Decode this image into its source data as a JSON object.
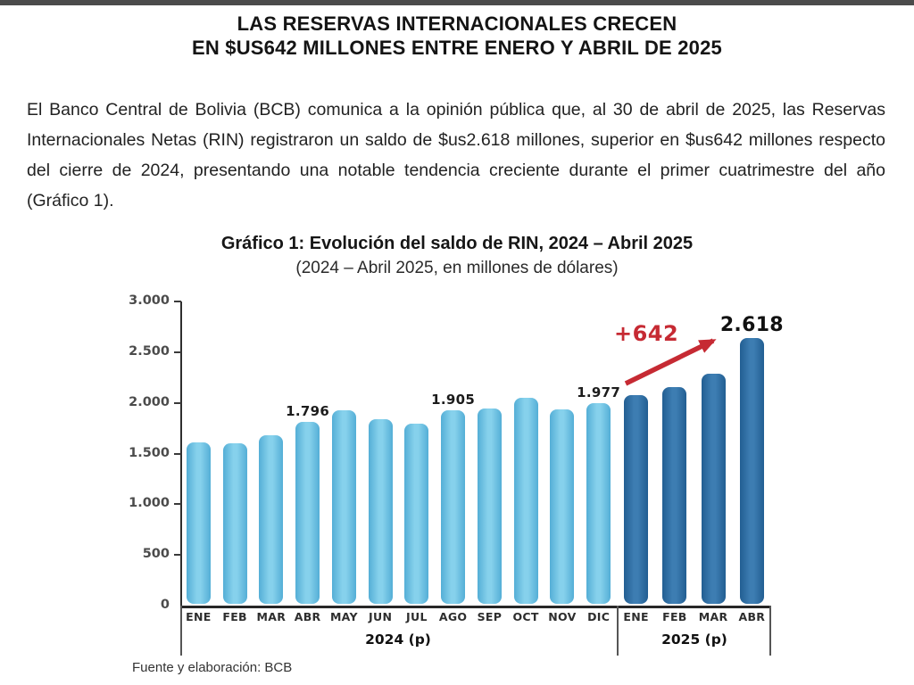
{
  "page": {
    "title_lines": [
      "LAS RESERVAS INTERNACIONALES CRECEN",
      "EN $US642 MILLONES ENTRE ENERO Y ABRIL DE 2025"
    ],
    "paragraph": "El Banco Central de Bolivia (BCB) comunica a la opinión pública que, al 30 de abril de 2025, las Reservas Internacionales Netas (RIN) registraron un saldo de $us2.618 millones, superior en $us642 millones respecto del cierre de 2024, presentando una notable tendencia creciente durante el primer cuatrimestre del año (Gráfico 1).",
    "source_note": "Fuente y elaboración: BCB"
  },
  "chart_data": {
    "type": "bar",
    "title": "Gráfico 1: Evolución del saldo de RIN, 2024 – Abril 2025",
    "subtitle": "(2024 – Abril 2025, en millones de dólares)",
    "ylabel": "",
    "xlabel": "",
    "ylim": [
      0,
      3000
    ],
    "ytick_labels": [
      "3.000",
      "2.500",
      "2.000",
      "1.500",
      "1.000",
      "500",
      "0"
    ],
    "grid": "off",
    "legend": "none",
    "group_labels": [
      "2024 (p)",
      "2025 (p)"
    ],
    "categories": [
      "ENE",
      "FEB",
      "MAR",
      "ABR",
      "MAY",
      "JUN",
      "JUL",
      "AGO",
      "SEP",
      "OCT",
      "NOV",
      "DIC",
      "ENE",
      "FEB",
      "MAR",
      "ABR"
    ],
    "bars": [
      {
        "month": "ENE",
        "group": "2024",
        "value": 1590
      },
      {
        "month": "FEB",
        "group": "2024",
        "value": 1585
      },
      {
        "month": "MAR",
        "group": "2024",
        "value": 1660
      },
      {
        "month": "ABR",
        "group": "2024",
        "value": 1796,
        "label": "1.796"
      },
      {
        "month": "MAY",
        "group": "2024",
        "value": 1905
      },
      {
        "month": "JUN",
        "group": "2024",
        "value": 1820
      },
      {
        "month": "JUL",
        "group": "2024",
        "value": 1780
      },
      {
        "month": "AGO",
        "group": "2024",
        "value": 1905,
        "label": "1.905"
      },
      {
        "month": "SEP",
        "group": "2024",
        "value": 1930
      },
      {
        "month": "OCT",
        "group": "2024",
        "value": 2035
      },
      {
        "month": "NOV",
        "group": "2024",
        "value": 1920
      },
      {
        "month": "DIC",
        "group": "2024",
        "value": 1977,
        "label": "1.977"
      },
      {
        "month": "ENE",
        "group": "2025",
        "value": 2060
      },
      {
        "month": "FEB",
        "group": "2025",
        "value": 2140
      },
      {
        "month": "MAR",
        "group": "2025",
        "value": 2270
      },
      {
        "month": "ABR",
        "group": "2025",
        "value": 2618,
        "label": "2.618"
      }
    ],
    "annotation": {
      "text": "+642"
    },
    "colors": {
      "bar_2024_edge": "#54aed6",
      "bar_2024_center": "#86d1ec",
      "bar_2025_edge": "#225e92",
      "bar_2025_center": "#3d7db2",
      "annotation_red": "#c62a33"
    }
  }
}
